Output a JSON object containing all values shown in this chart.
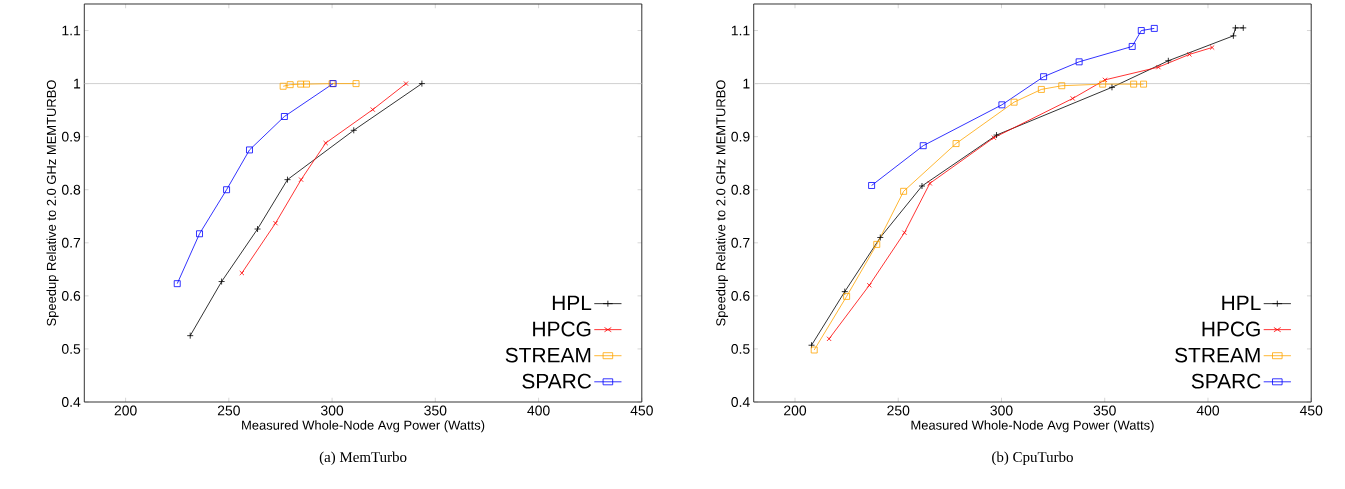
{
  "chart_data": [
    {
      "type": "line",
      "title": "(a) MemTurbo",
      "xlabel": "Measured Whole-Node Avg Power (Watts)",
      "ylabel": "Speedup Relative to 2.0 GHz MEMTURBO",
      "xlim": [
        180,
        450
      ],
      "ylim": [
        0.4,
        1.15
      ],
      "xticks": [
        200,
        250,
        300,
        350,
        400,
        450
      ],
      "yticks": [
        0.4,
        0.5,
        0.6,
        0.7,
        0.8,
        0.9,
        1,
        1.1
      ],
      "legend": "bottom right",
      "grid": false,
      "line_style": "solid",
      "ref_lines": [
        {
          "axis": "y",
          "value": 1,
          "color": "#d0d0d0"
        }
      ],
      "series": [
        {
          "name": "HPL",
          "color": "#000000",
          "marker": "plus",
          "x": [
            231.3,
            246.5,
            263.9,
            278.4,
            310.5,
            343.5
          ],
          "values": [
            0.525,
            0.627,
            0.726,
            0.819,
            0.912,
            1.0
          ]
        },
        {
          "name": "HPCG",
          "color": "#ff0000",
          "marker": "cross",
          "x": [
            256.3,
            272.6,
            285,
            296.9,
            319.7,
            335.8
          ],
          "values": [
            0.643,
            0.737,
            0.819,
            0.888,
            0.951,
            1.0
          ]
        },
        {
          "name": "STREAM",
          "color": "#ffa500",
          "marker": "square",
          "x": [
            276.3,
            279.7,
            284.8,
            287.6,
            300,
            311.6
          ],
          "values": [
            0.995,
            0.998,
            0.999,
            0.999,
            1.0,
            1.0
          ]
        },
        {
          "name": "SPARC",
          "color": "#0000ff",
          "marker": "square",
          "x": [
            225,
            235.8,
            248.9,
            260,
            276.9,
            300.5
          ],
          "values": [
            0.623,
            0.717,
            0.8,
            0.875,
            0.938,
            1.0
          ]
        }
      ]
    },
    {
      "type": "line",
      "title": "(b) CpuTurbo",
      "xlabel": "Measured Whole-Node Avg Power (Watts)",
      "ylabel": "Speedup Relative to 2.0 GHz MEMTURBO",
      "xlim": [
        180,
        450
      ],
      "ylim": [
        0.4,
        1.15
      ],
      "xticks": [
        200,
        250,
        300,
        350,
        400,
        450
      ],
      "yticks": [
        0.4,
        0.5,
        0.6,
        0.7,
        0.8,
        0.9,
        1,
        1.1
      ],
      "legend": "bottom right",
      "grid": false,
      "line_style": "solid",
      "ref_lines": [
        {
          "axis": "y",
          "value": 1,
          "color": "#d0d0d0"
        }
      ],
      "series": [
        {
          "name": "HPL",
          "color": "#000000",
          "marker": "plus",
          "x": [
            208,
            224.1,
            241.3,
            261.5,
            297.6,
            353.5,
            380.8,
            412.3,
            413.3,
            417.1
          ],
          "values": [
            0.507,
            0.608,
            0.71,
            0.807,
            0.903,
            0.993,
            1.043,
            1.09,
            1.105,
            1.105
          ]
        },
        {
          "name": "HPCG",
          "color": "#ff0000",
          "marker": "cross",
          "x": [
            216.5,
            236,
            253,
            265.3,
            296.3,
            334.5,
            350.1,
            376,
            391,
            402
          ],
          "values": [
            0.519,
            0.62,
            0.719,
            0.812,
            0.898,
            0.972,
            1.007,
            1.031,
            1.055,
            1.068
          ]
        },
        {
          "name": "STREAM",
          "color": "#ffa500",
          "marker": "square",
          "x": [
            209.3,
            225,
            239.6,
            252.6,
            278,
            306.1,
            319.3,
            329.2,
            349,
            364,
            368.8
          ],
          "values": [
            0.498,
            0.599,
            0.697,
            0.797,
            0.887,
            0.965,
            0.989,
            0.996,
            0.999,
            0.999,
            0.999
          ]
        },
        {
          "name": "SPARC",
          "color": "#0000ff",
          "marker": "square",
          "x": [
            237.1,
            262.1,
            300.2,
            320.4,
            337.6,
            363.3,
            367.7,
            374
          ],
          "values": [
            0.808,
            0.883,
            0.96,
            1.013,
            1.041,
            1.07,
            1.1,
            1.104
          ]
        }
      ]
    }
  ]
}
